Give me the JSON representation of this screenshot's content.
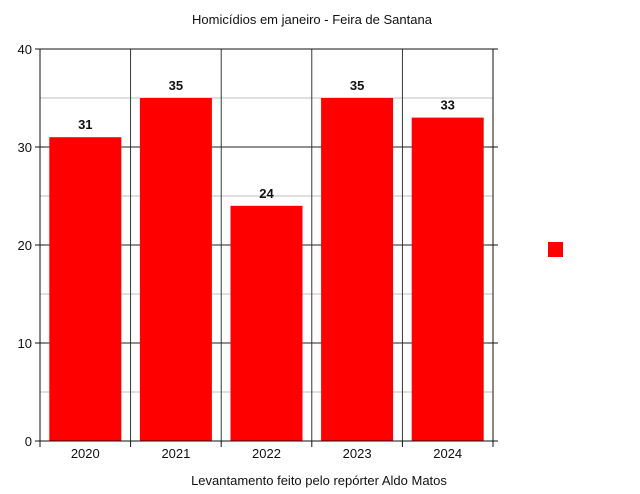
{
  "chart_data": {
    "type": "bar",
    "title": "Homicídios em janeiro - Feira de Santana",
    "xlabel": "Levantamento feito pelo repórter Aldo Matos",
    "ylabel": "",
    "categories": [
      "2020",
      "2021",
      "2022",
      "2023",
      "2024"
    ],
    "values": [
      31,
      35,
      24,
      35,
      33
    ],
    "data_labels": [
      "31",
      "35",
      "24",
      "35",
      "33"
    ],
    "ylim": [
      0,
      40
    ],
    "yticks": [
      0,
      10,
      20,
      30,
      40
    ],
    "ytick_labels": [
      "0",
      "10",
      "20",
      "30",
      "40"
    ],
    "bar_color": "#ff0000",
    "grid": true,
    "legend": {
      "placement": "right",
      "swatch_color": "#ff0000"
    }
  }
}
